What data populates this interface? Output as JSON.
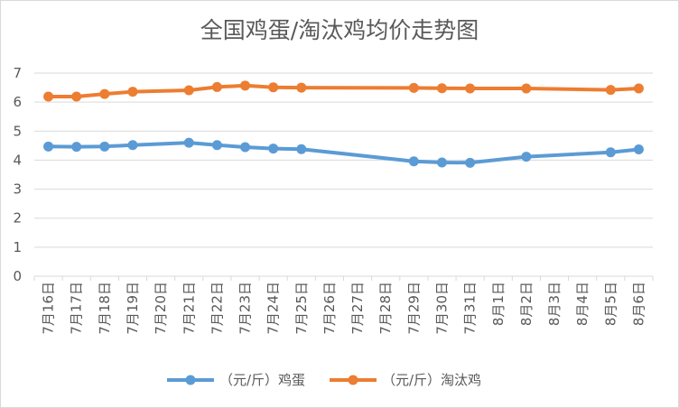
{
  "chart_data": {
    "type": "line",
    "title": "全国鸡蛋/淘汰鸡均价走势图",
    "xlabel": "",
    "ylabel": "",
    "ylim": [
      0,
      7
    ],
    "yticks": [
      0,
      1,
      2,
      3,
      4,
      5,
      6,
      7
    ],
    "grid": true,
    "legend_position": "bottom",
    "categories": [
      "7月16日",
      "7月17日",
      "7月18日",
      "7月19日",
      "7月20日",
      "7月21日",
      "7月22日",
      "7月23日",
      "7月24日",
      "7月25日",
      "7月26日",
      "7月27日",
      "7月28日",
      "7月29日",
      "7月30日",
      "7月31日",
      "8月1日",
      "8月2日",
      "8月3日",
      "8月4日",
      "8月5日",
      "8月6日"
    ],
    "series": [
      {
        "name": "（元/斤）鸡蛋",
        "color": "#5b9bd5",
        "values": [
          4.47,
          4.46,
          4.47,
          4.52,
          null,
          4.6,
          4.52,
          4.45,
          4.4,
          4.38,
          null,
          null,
          null,
          3.96,
          3.92,
          3.91,
          null,
          4.12,
          null,
          null,
          4.27,
          4.37
        ]
      },
      {
        "name": "（元/斤）淘汰鸡",
        "color": "#ed7d31",
        "values": [
          6.19,
          6.19,
          6.28,
          6.36,
          null,
          6.41,
          6.52,
          6.57,
          6.51,
          6.5,
          null,
          null,
          null,
          6.49,
          6.48,
          6.47,
          null,
          6.47,
          null,
          null,
          6.42,
          6.47
        ]
      }
    ]
  }
}
